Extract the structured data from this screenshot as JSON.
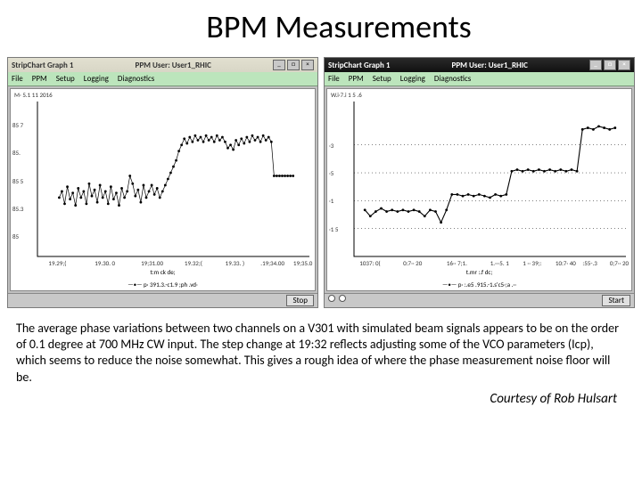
{
  "title": "BPM Measurements",
  "caption": "The average phase variations between two channels on a V301 with simulated beam signals appears to be on the order of 0.1 degree at 700 MHz CW input.  The step change at 19:32 reflects adjusting some of the VCO parameters (Icp), which seems to reduce the noise somewhat.  This gives a rough idea of where the phase measurement noise floor will be.",
  "credit": "Courtesy of Rob Hulsart",
  "left_window": {
    "titlebar_left": "StripChart Graph 1",
    "titlebar_right": "PPM User: User1_RHIC",
    "menu": [
      "File",
      "PPM",
      "Setup",
      "Logging",
      "Diagnostics"
    ],
    "plot_title": "M· 5.1 11 2016",
    "y_ticks": [
      {
        "label": "85 7",
        "pos": 0.15
      },
      {
        "label": "85.",
        "pos": 0.33
      },
      {
        "label": "85 5",
        "pos": 0.51
      },
      {
        "label": "85.3",
        "pos": 0.69
      },
      {
        "label": "85  ",
        "pos": 0.87
      }
    ],
    "x_ticks": [
      {
        "label": "19.29;(",
        "pos": 0.08
      },
      {
        "label": "19.30. 0",
        "pos": 0.25
      },
      {
        "label": "19;31.00",
        "pos": 0.42
      },
      {
        "label": "19.32;(",
        "pos": 0.58
      },
      {
        "label": "19.33. )",
        "pos": 0.73
      },
      {
        "label": ".19;34.00",
        "pos": 0.86
      },
      {
        "label": "19;35.0",
        "pos": 0.98
      }
    ],
    "x_title": "t:m ck de;",
    "legend": "—•— p· 391.3.-c1.9 ;ph .vd·",
    "footer_button": "Stop",
    "colors": {
      "bg": "#ffffff",
      "line": "#000000",
      "axis": "#000000"
    },
    "series": [
      [
        0.08,
        0.62
      ],
      [
        0.09,
        0.58
      ],
      [
        0.1,
        0.66
      ],
      [
        0.11,
        0.55
      ],
      [
        0.12,
        0.63
      ],
      [
        0.13,
        0.59
      ],
      [
        0.14,
        0.67
      ],
      [
        0.15,
        0.56
      ],
      [
        0.16,
        0.62
      ],
      [
        0.17,
        0.58
      ],
      [
        0.18,
        0.66
      ],
      [
        0.19,
        0.53
      ],
      [
        0.2,
        0.61
      ],
      [
        0.21,
        0.57
      ],
      [
        0.22,
        0.65
      ],
      [
        0.23,
        0.54
      ],
      [
        0.24,
        0.62
      ],
      [
        0.25,
        0.58
      ],
      [
        0.26,
        0.66
      ],
      [
        0.27,
        0.55
      ],
      [
        0.28,
        0.63
      ],
      [
        0.29,
        0.59
      ],
      [
        0.3,
        0.67
      ],
      [
        0.31,
        0.56
      ],
      [
        0.32,
        0.62
      ],
      [
        0.33,
        0.58
      ],
      [
        0.34,
        0.48
      ],
      [
        0.35,
        0.53
      ],
      [
        0.36,
        0.61
      ],
      [
        0.37,
        0.57
      ],
      [
        0.38,
        0.65
      ],
      [
        0.39,
        0.54
      ],
      [
        0.4,
        0.62
      ],
      [
        0.41,
        0.58
      ],
      [
        0.42,
        0.54
      ],
      [
        0.43,
        0.6
      ],
      [
        0.44,
        0.56
      ],
      [
        0.45,
        0.62
      ],
      [
        0.46,
        0.58
      ],
      [
        0.47,
        0.54
      ],
      [
        0.48,
        0.5
      ],
      [
        0.49,
        0.46
      ],
      [
        0.5,
        0.42
      ],
      [
        0.51,
        0.38
      ],
      [
        0.52,
        0.32
      ],
      [
        0.53,
        0.28
      ],
      [
        0.54,
        0.24
      ],
      [
        0.55,
        0.27
      ],
      [
        0.56,
        0.23
      ],
      [
        0.57,
        0.26
      ],
      [
        0.58,
        0.22
      ],
      [
        0.59,
        0.25
      ],
      [
        0.6,
        0.23
      ],
      [
        0.61,
        0.26
      ],
      [
        0.62,
        0.22
      ],
      [
        0.63,
        0.25
      ],
      [
        0.64,
        0.23
      ],
      [
        0.65,
        0.26
      ],
      [
        0.66,
        0.22
      ],
      [
        0.67,
        0.25
      ],
      [
        0.68,
        0.23
      ],
      [
        0.69,
        0.26
      ],
      [
        0.7,
        0.3
      ],
      [
        0.71,
        0.28
      ],
      [
        0.72,
        0.31
      ],
      [
        0.73,
        0.25
      ],
      [
        0.74,
        0.28
      ],
      [
        0.75,
        0.24
      ],
      [
        0.76,
        0.27
      ],
      [
        0.77,
        0.23
      ],
      [
        0.78,
        0.26
      ],
      [
        0.79,
        0.22
      ],
      [
        0.8,
        0.25
      ],
      [
        0.81,
        0.23
      ],
      [
        0.82,
        0.26
      ],
      [
        0.83,
        0.22
      ],
      [
        0.84,
        0.25
      ],
      [
        0.85,
        0.23
      ],
      [
        0.86,
        0.26
      ],
      [
        0.87,
        0.48
      ],
      [
        0.88,
        0.48
      ],
      [
        0.89,
        0.48
      ],
      [
        0.9,
        0.48
      ],
      [
        0.91,
        0.48
      ],
      [
        0.92,
        0.48
      ],
      [
        0.93,
        0.48
      ],
      [
        0.94,
        0.48
      ]
    ]
  },
  "right_window": {
    "titlebar_left": "StripChart Graph 1",
    "titlebar_right": "PPM User: User1_RHIC",
    "menu": [
      "File",
      "PPM",
      "Setup",
      "Logging",
      "Diagnostics"
    ],
    "plot_title": "W.i·7.i 1 5 .6",
    "y_ticks": [
      {
        "label": "·3",
        "pos": 0.28
      },
      {
        "label": "·5",
        "pos": 0.46
      },
      {
        "label": "·1",
        "pos": 0.64
      },
      {
        "label": "·1 5",
        "pos": 0.82
      }
    ],
    "x_ticks": [
      {
        "label": "1037: 0(",
        "pos": 0.06
      },
      {
        "label": "0:7·· 20",
        "pos": 0.22
      },
      {
        "label": "16·· 7;1.",
        "pos": 0.38
      },
      {
        "label": "1.···5. 1",
        "pos": 0.54
      },
      {
        "label": "1 ·· 39;:",
        "pos": 0.66
      },
      {
        "label": "10:7· 40",
        "pos": 0.78
      },
      {
        "label": " :55-.3",
        "pos": 0.88
      },
      {
        "label": "0;7·· 20",
        "pos": 0.98
      }
    ],
    "x_title": "t.mr :.f dc;",
    "legend": "—•— p·  :.e5  .915.-1.s'c5·;a .··",
    "footer_button": "Start",
    "colors": {
      "bg": "#ffffff",
      "line": "#000000",
      "axis": "#000000",
      "grid": "#000000"
    },
    "grid_y": [
      0.28,
      0.46,
      0.64,
      0.82
    ],
    "series": [
      [
        0.04,
        0.7
      ],
      [
        0.06,
        0.74
      ],
      [
        0.08,
        0.71
      ],
      [
        0.1,
        0.69
      ],
      [
        0.12,
        0.71
      ],
      [
        0.14,
        0.7
      ],
      [
        0.16,
        0.71
      ],
      [
        0.18,
        0.7
      ],
      [
        0.2,
        0.71
      ],
      [
        0.22,
        0.7
      ],
      [
        0.24,
        0.71
      ],
      [
        0.26,
        0.74
      ],
      [
        0.28,
        0.7
      ],
      [
        0.3,
        0.71
      ],
      [
        0.32,
        0.78
      ],
      [
        0.34,
        0.7
      ],
      [
        0.36,
        0.6
      ],
      [
        0.38,
        0.6
      ],
      [
        0.4,
        0.61
      ],
      [
        0.42,
        0.6
      ],
      [
        0.44,
        0.61
      ],
      [
        0.46,
        0.6
      ],
      [
        0.48,
        0.61
      ],
      [
        0.5,
        0.62
      ],
      [
        0.52,
        0.6
      ],
      [
        0.54,
        0.61
      ],
      [
        0.56,
        0.6
      ],
      [
        0.58,
        0.45
      ],
      [
        0.6,
        0.44
      ],
      [
        0.62,
        0.45
      ],
      [
        0.64,
        0.44
      ],
      [
        0.66,
        0.45
      ],
      [
        0.68,
        0.44
      ],
      [
        0.7,
        0.45
      ],
      [
        0.72,
        0.44
      ],
      [
        0.74,
        0.45
      ],
      [
        0.76,
        0.44
      ],
      [
        0.78,
        0.45
      ],
      [
        0.8,
        0.44
      ],
      [
        0.82,
        0.45
      ],
      [
        0.84,
        0.18
      ],
      [
        0.86,
        0.17
      ],
      [
        0.88,
        0.18
      ],
      [
        0.9,
        0.16
      ],
      [
        0.92,
        0.17
      ],
      [
        0.94,
        0.18
      ],
      [
        0.96,
        0.17
      ]
    ]
  }
}
